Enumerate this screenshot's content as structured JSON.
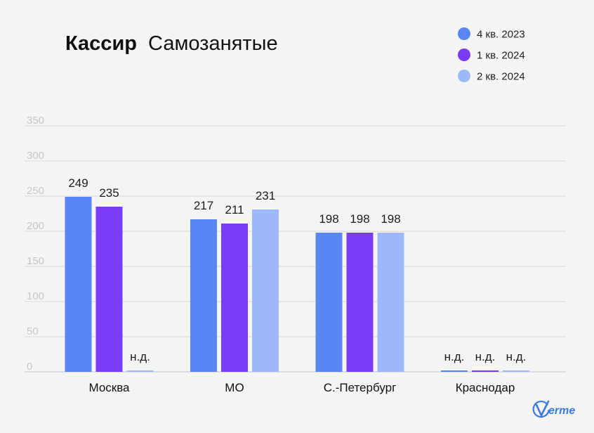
{
  "chart_data": {
    "type": "bar",
    "title": {
      "bold": "Кассир",
      "regular": "Самозанятые"
    },
    "categories": [
      "Москва",
      "МО",
      "С.-Петербург",
      "Краснодар"
    ],
    "series": [
      {
        "name": "4 кв. 2023",
        "color": "#5A86F4",
        "values": [
          249,
          217,
          198,
          null
        ]
      },
      {
        "name": "1 кв. 2024",
        "color": "#7B3CF7",
        "values": [
          235,
          211,
          198,
          null
        ]
      },
      {
        "name": "2 кв. 2024",
        "color": "#9DB9FB",
        "values": [
          null,
          231,
          198,
          null
        ]
      }
    ],
    "missing_label": "н.д.",
    "yticks": [
      0,
      50,
      100,
      150,
      200,
      250,
      300,
      350
    ],
    "ylim": [
      0,
      350
    ],
    "xlabel": "",
    "ylabel": "",
    "grid": true,
    "legend_position": "top-right"
  },
  "logo": {
    "icon": "verme-logo-icon",
    "text": "erme",
    "color": "#3C7BDD"
  }
}
